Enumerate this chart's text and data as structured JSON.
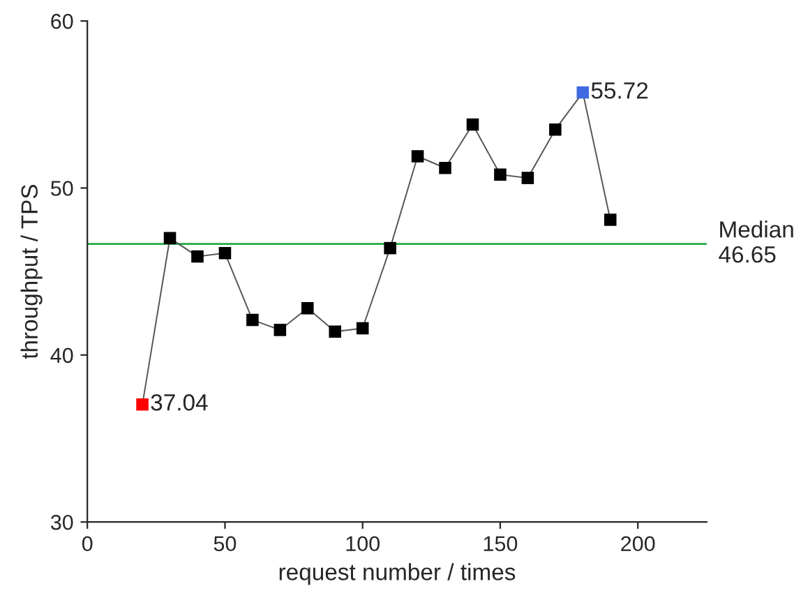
{
  "chart_data": {
    "type": "line",
    "xlabel": "request number / times",
    "ylabel": "throughput / TPS",
    "x": [
      20,
      30,
      40,
      50,
      60,
      70,
      80,
      90,
      100,
      110,
      120,
      130,
      140,
      150,
      160,
      170,
      180,
      190
    ],
    "series": [
      {
        "color": "#555555",
        "values": [
          37.04,
          47.0,
          45.9,
          46.1,
          42.1,
          41.5,
          42.8,
          41.4,
          41.6,
          46.4,
          51.9,
          51.2,
          53.8,
          50.8,
          50.6,
          53.5,
          55.72,
          48.1
        ],
        "colors": [
          "#ff0000",
          "#000000",
          "#000000",
          "#000000",
          "#000000",
          "#000000",
          "#000000",
          "#000000",
          "#000000",
          "#000000",
          "#000000",
          "#000000",
          "#000000",
          "#000000",
          "#000000",
          "#000000",
          "#4169e1",
          "#000000"
        ],
        "value_labels": [
          "37.04",
          null,
          null,
          null,
          null,
          null,
          null,
          null,
          null,
          null,
          null,
          null,
          null,
          null,
          null,
          null,
          "55.72",
          null
        ]
      }
    ],
    "marker": "square",
    "line_style": "solid",
    "xlim": [
      0,
      225
    ],
    "xticks": [
      0,
      50,
      100,
      150,
      200
    ],
    "ylim": [
      30,
      60
    ],
    "yticks": [
      30,
      40,
      50,
      60
    ],
    "ref_lines": [
      {
        "axis": "y",
        "value": 46.65,
        "label": "Median\n46.65",
        "color": "#22aa44"
      }
    ],
    "grid": false,
    "legend": false
  }
}
